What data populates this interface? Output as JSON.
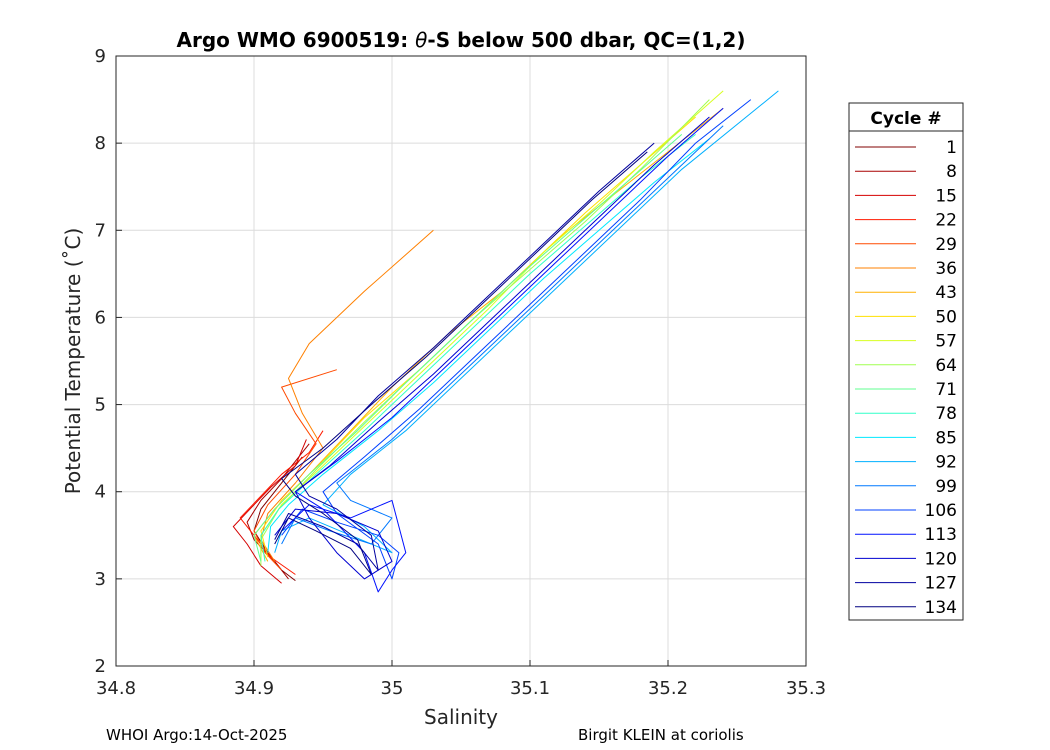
{
  "chart_data": {
    "type": "line",
    "title_prefix": "Argo WMO 6900519: ",
    "title_theta": "θ",
    "title_suffix": "-S below 500 dbar,  QC=(1,2)",
    "xlabel": "Salinity",
    "ylabel": "Potential Temperature (˚C)",
    "xlim": [
      34.8,
      35.3
    ],
    "ylim": [
      2,
      9
    ],
    "xticks": [
      34.8,
      34.9,
      35,
      35.1,
      35.2,
      35.3
    ],
    "xtick_labels": [
      "34.8",
      "34.9",
      "35",
      "35.1",
      "35.2",
      "35.3"
    ],
    "yticks": [
      2,
      3,
      4,
      5,
      6,
      7,
      8,
      9
    ],
    "ytick_labels": [
      "2",
      "3",
      "4",
      "5",
      "6",
      "7",
      "8",
      "9"
    ],
    "grid": true,
    "legend_title": "Cycle #",
    "legend_placement": "outside-right",
    "legend": [
      {
        "label": "1",
        "color": "#800000"
      },
      {
        "label": "8",
        "color": "#a80000"
      },
      {
        "label": "15",
        "color": "#d40000"
      },
      {
        "label": "22",
        "color": "#ff1a00"
      },
      {
        "label": "29",
        "color": "#ff4a00"
      },
      {
        "label": "36",
        "color": "#ff8000"
      },
      {
        "label": "43",
        "color": "#ffb000"
      },
      {
        "label": "50",
        "color": "#ffe000"
      },
      {
        "label": "57",
        "color": "#d8ff20"
      },
      {
        "label": "64",
        "color": "#a0ff50"
      },
      {
        "label": "71",
        "color": "#60ff90"
      },
      {
        "label": "78",
        "color": "#30ffc8"
      },
      {
        "label": "85",
        "color": "#00e8ff"
      },
      {
        "label": "92",
        "color": "#00b0ff"
      },
      {
        "label": "99",
        "color": "#0078ff"
      },
      {
        "label": "106",
        "color": "#0040ff"
      },
      {
        "label": "113",
        "color": "#0010ff"
      },
      {
        "label": "120",
        "color": "#0000d0"
      },
      {
        "label": "127",
        "color": "#0000a0"
      },
      {
        "label": "134",
        "color": "#000080"
      }
    ],
    "series": [
      {
        "name": "1",
        "color": "#800000",
        "points": [
          [
            34.93,
            2.98
          ],
          [
            34.92,
            3.1
          ],
          [
            34.91,
            3.3
          ],
          [
            34.9,
            3.55
          ],
          [
            34.905,
            3.8
          ],
          [
            34.915,
            4.0
          ],
          [
            34.925,
            4.2
          ],
          [
            34.935,
            4.4
          ]
        ]
      },
      {
        "name": "8",
        "color": "#a80000",
        "points": [
          [
            34.925,
            3.0
          ],
          [
            34.915,
            3.2
          ],
          [
            34.9,
            3.45
          ],
          [
            34.895,
            3.65
          ],
          [
            34.905,
            3.9
          ],
          [
            34.92,
            4.15
          ],
          [
            34.93,
            4.35
          ],
          [
            34.94,
            4.55
          ]
        ]
      },
      {
        "name": "15",
        "color": "#d40000",
        "points": [
          [
            34.92,
            2.95
          ],
          [
            34.905,
            3.15
          ],
          [
            34.895,
            3.4
          ],
          [
            34.885,
            3.6
          ],
          [
            34.9,
            3.85
          ],
          [
            34.912,
            4.05
          ],
          [
            34.93,
            4.3
          ],
          [
            34.938,
            4.6
          ]
        ]
      },
      {
        "name": "22",
        "color": "#ff1a00",
        "points": [
          [
            34.93,
            3.05
          ],
          [
            34.912,
            3.25
          ],
          [
            34.9,
            3.5
          ],
          [
            34.89,
            3.7
          ],
          [
            34.905,
            3.95
          ],
          [
            34.92,
            4.2
          ],
          [
            34.94,
            4.45
          ],
          [
            34.95,
            4.7
          ]
        ]
      },
      {
        "name": "29",
        "color": "#ff4a00",
        "points": [
          [
            34.92,
            3.1
          ],
          [
            34.908,
            3.3
          ],
          [
            34.9,
            3.55
          ],
          [
            34.91,
            3.85
          ],
          [
            34.93,
            4.2
          ],
          [
            34.945,
            4.55
          ],
          [
            34.93,
            4.9
          ],
          [
            34.92,
            5.2
          ],
          [
            34.96,
            5.4
          ]
        ]
      },
      {
        "name": "36",
        "color": "#ff8000",
        "points": [
          [
            34.915,
            3.2
          ],
          [
            34.905,
            3.45
          ],
          [
            34.91,
            3.75
          ],
          [
            34.93,
            4.1
          ],
          [
            34.95,
            4.5
          ],
          [
            34.935,
            4.9
          ],
          [
            34.925,
            5.3
          ],
          [
            34.94,
            5.7
          ],
          [
            34.98,
            6.3
          ],
          [
            35.03,
            7.0
          ]
        ]
      },
      {
        "name": "43",
        "color": "#ffb000",
        "points": [
          [
            34.91,
            3.2
          ],
          [
            34.9,
            3.5
          ],
          [
            34.915,
            3.8
          ],
          [
            34.94,
            4.2
          ],
          [
            34.97,
            4.7
          ],
          [
            35.0,
            5.2
          ],
          [
            35.04,
            5.8
          ],
          [
            35.08,
            6.3
          ],
          [
            35.12,
            6.9
          ],
          [
            35.16,
            7.4
          ],
          [
            35.2,
            7.9
          ],
          [
            35.24,
            8.4
          ]
        ]
      },
      {
        "name": "50",
        "color": "#ffe000",
        "points": [
          [
            34.91,
            3.25
          ],
          [
            34.905,
            3.55
          ],
          [
            34.92,
            3.9
          ],
          [
            34.95,
            4.35
          ],
          [
            34.98,
            4.85
          ],
          [
            35.02,
            5.4
          ],
          [
            35.06,
            6.0
          ],
          [
            35.1,
            6.6
          ],
          [
            35.14,
            7.2
          ],
          [
            35.18,
            7.75
          ],
          [
            35.22,
            8.3
          ]
        ]
      },
      {
        "name": "57",
        "color": "#d8ff20",
        "points": [
          [
            34.905,
            3.2
          ],
          [
            34.905,
            3.5
          ],
          [
            34.92,
            3.85
          ],
          [
            34.95,
            4.3
          ],
          [
            34.99,
            4.9
          ],
          [
            35.03,
            5.5
          ],
          [
            35.07,
            6.1
          ],
          [
            35.11,
            6.75
          ],
          [
            35.15,
            7.3
          ],
          [
            35.19,
            7.9
          ],
          [
            35.24,
            8.6
          ]
        ]
      },
      {
        "name": "64",
        "color": "#a0ff50",
        "points": [
          [
            34.905,
            3.15
          ],
          [
            34.905,
            3.45
          ],
          [
            34.918,
            3.8
          ],
          [
            34.945,
            4.25
          ],
          [
            34.98,
            4.8
          ],
          [
            35.02,
            5.4
          ],
          [
            35.06,
            6.0
          ],
          [
            35.1,
            6.55
          ],
          [
            35.14,
            7.1
          ],
          [
            35.18,
            7.7
          ],
          [
            35.23,
            8.5
          ]
        ]
      },
      {
        "name": "71",
        "color": "#60ff90",
        "points": [
          [
            34.905,
            3.2
          ],
          [
            34.9,
            3.5
          ],
          [
            34.915,
            3.8
          ],
          [
            34.94,
            4.2
          ],
          [
            34.975,
            4.7
          ],
          [
            35.01,
            5.25
          ],
          [
            35.05,
            5.85
          ],
          [
            35.09,
            6.45
          ],
          [
            35.13,
            7.0
          ],
          [
            35.17,
            7.55
          ],
          [
            35.21,
            8.1
          ]
        ]
      },
      {
        "name": "78",
        "color": "#30ffc8",
        "points": [
          [
            34.908,
            3.2
          ],
          [
            34.905,
            3.5
          ],
          [
            34.918,
            3.8
          ],
          [
            34.945,
            4.2
          ],
          [
            34.98,
            4.7
          ],
          [
            35.02,
            5.3
          ],
          [
            35.06,
            5.9
          ],
          [
            35.1,
            6.5
          ],
          [
            35.14,
            7.05
          ],
          [
            35.18,
            7.6
          ],
          [
            35.22,
            8.1
          ]
        ]
      },
      {
        "name": "85",
        "color": "#00e8ff",
        "points": [
          [
            34.91,
            3.3
          ],
          [
            34.912,
            3.6
          ],
          [
            34.925,
            3.85
          ],
          [
            34.95,
            4.2
          ],
          [
            34.99,
            4.7
          ],
          [
            35.03,
            5.25
          ],
          [
            35.07,
            5.85
          ],
          [
            35.11,
            6.45
          ],
          [
            35.15,
            7.0
          ],
          [
            35.19,
            7.55
          ],
          [
            35.23,
            8.05
          ]
        ]
      },
      {
        "name": "92",
        "color": "#00b0ff",
        "points": [
          [
            34.915,
            3.3
          ],
          [
            34.92,
            3.55
          ],
          [
            34.94,
            3.7
          ],
          [
            34.97,
            3.5
          ],
          [
            35.0,
            3.3
          ],
          [
            34.98,
            3.6
          ],
          [
            34.95,
            3.85
          ],
          [
            34.97,
            4.2
          ],
          [
            35.01,
            4.7
          ],
          [
            35.05,
            5.3
          ],
          [
            35.09,
            5.9
          ],
          [
            35.13,
            6.5
          ],
          [
            35.17,
            7.1
          ],
          [
            35.21,
            7.7
          ],
          [
            35.28,
            8.6
          ]
        ]
      },
      {
        "name": "99",
        "color": "#0078ff",
        "points": [
          [
            34.92,
            3.4
          ],
          [
            34.93,
            3.7
          ],
          [
            34.955,
            3.55
          ],
          [
            34.985,
            3.4
          ],
          [
            35.0,
            3.7
          ],
          [
            34.97,
            3.9
          ],
          [
            34.96,
            4.1
          ],
          [
            35.0,
            4.6
          ],
          [
            35.04,
            5.2
          ],
          [
            35.08,
            5.8
          ],
          [
            35.12,
            6.4
          ],
          [
            35.16,
            7.0
          ],
          [
            35.2,
            7.6
          ],
          [
            35.24,
            8.2
          ]
        ]
      },
      {
        "name": "106",
        "color": "#0040ff",
        "points": [
          [
            34.92,
            3.5
          ],
          [
            34.935,
            3.8
          ],
          [
            34.96,
            3.65
          ],
          [
            34.99,
            3.5
          ],
          [
            35.005,
            3.3
          ],
          [
            35.0,
            3.0
          ],
          [
            34.99,
            3.4
          ],
          [
            34.96,
            3.75
          ],
          [
            34.95,
            4.0
          ],
          [
            34.98,
            4.4
          ],
          [
            35.02,
            4.95
          ],
          [
            35.06,
            5.55
          ],
          [
            35.1,
            6.15
          ],
          [
            35.14,
            6.75
          ],
          [
            35.18,
            7.35
          ],
          [
            35.22,
            8.0
          ],
          [
            35.26,
            8.5
          ]
        ]
      },
      {
        "name": "113",
        "color": "#0010ff",
        "points": [
          [
            34.92,
            3.55
          ],
          [
            34.94,
            3.85
          ],
          [
            34.97,
            3.7
          ],
          [
            35.0,
            3.9
          ],
          [
            35.005,
            3.6
          ],
          [
            35.01,
            3.3
          ],
          [
            35.0,
            3.1
          ],
          [
            34.99,
            2.85
          ],
          [
            34.98,
            3.3
          ],
          [
            34.95,
            3.8
          ],
          [
            34.93,
            4.0
          ],
          [
            34.96,
            4.35
          ],
          [
            35.0,
            4.85
          ],
          [
            35.04,
            5.45
          ],
          [
            35.08,
            6.05
          ],
          [
            35.12,
            6.65
          ],
          [
            35.16,
            7.25
          ],
          [
            35.2,
            7.85
          ],
          [
            35.24,
            8.4
          ]
        ]
      },
      {
        "name": "120",
        "color": "#0000d0",
        "points": [
          [
            34.915,
            3.5
          ],
          [
            34.93,
            3.8
          ],
          [
            34.96,
            3.75
          ],
          [
            34.99,
            3.55
          ],
          [
            35.0,
            3.2
          ],
          [
            34.98,
            3.0
          ],
          [
            34.96,
            3.3
          ],
          [
            34.94,
            3.7
          ],
          [
            34.93,
            4.0
          ],
          [
            34.955,
            4.3
          ],
          [
            34.99,
            4.8
          ],
          [
            35.03,
            5.35
          ],
          [
            35.07,
            5.95
          ],
          [
            35.11,
            6.55
          ],
          [
            35.15,
            7.15
          ],
          [
            35.19,
            7.75
          ],
          [
            35.23,
            8.3
          ]
        ]
      },
      {
        "name": "127",
        "color": "#0000a0",
        "points": [
          [
            34.915,
            3.45
          ],
          [
            34.925,
            3.75
          ],
          [
            34.95,
            3.6
          ],
          [
            34.975,
            3.4
          ],
          [
            34.99,
            3.1
          ],
          [
            34.985,
            3.5
          ],
          [
            34.96,
            3.8
          ],
          [
            34.94,
            3.95
          ],
          [
            34.93,
            4.2
          ],
          [
            34.96,
            4.6
          ],
          [
            34.99,
            5.1
          ],
          [
            35.03,
            5.65
          ],
          [
            35.07,
            6.25
          ],
          [
            35.11,
            6.85
          ],
          [
            35.15,
            7.45
          ],
          [
            35.19,
            8.0
          ]
        ]
      },
      {
        "name": "134",
        "color": "#000080",
        "points": [
          [
            34.915,
            3.4
          ],
          [
            34.925,
            3.7
          ],
          [
            34.945,
            3.55
          ],
          [
            34.97,
            3.35
          ],
          [
            34.985,
            3.05
          ],
          [
            34.975,
            3.45
          ],
          [
            34.95,
            3.75
          ],
          [
            34.93,
            3.95
          ],
          [
            34.92,
            4.15
          ],
          [
            34.95,
            4.5
          ],
          [
            34.985,
            5.0
          ],
          [
            35.025,
            5.55
          ],
          [
            35.065,
            6.15
          ],
          [
            35.105,
            6.75
          ],
          [
            35.145,
            7.35
          ],
          [
            35.185,
            7.9
          ]
        ]
      }
    ]
  },
  "footer": {
    "left": "WHOI Argo:14-Oct-2025",
    "right": "Birgit KLEIN at coriolis"
  }
}
